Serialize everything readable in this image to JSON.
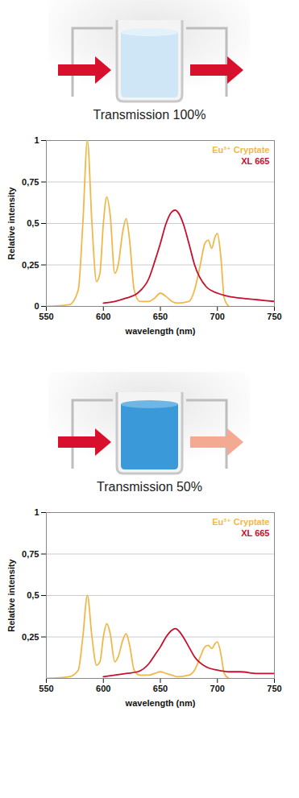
{
  "chart_data": [
    {
      "type": "line",
      "title": "Transmission 100%",
      "x_label": "wavelength (nm)",
      "y_label": "Relative intensity",
      "xlim": [
        550,
        750
      ],
      "xticks": [
        550,
        600,
        650,
        700,
        750
      ],
      "ylim": [
        0,
        1
      ],
      "yticks": [
        0,
        {
          "value": 0.25,
          "label": "0,25"
        },
        {
          "value": 0.5,
          "label": "0,5"
        },
        {
          "value": 0.75,
          "label": "0,75"
        },
        1
      ],
      "grid": true,
      "legend": "top-right",
      "series": [
        {
          "name": "Eu³⁺ Cryptate",
          "color": "#f0b84a",
          "x": [
            550,
            570,
            578,
            582,
            586,
            590,
            594,
            597,
            600,
            603,
            606,
            610,
            613,
            617,
            620,
            623,
            627,
            632,
            640,
            645,
            650,
            655,
            660,
            665,
            675,
            680,
            685,
            689,
            692,
            695,
            698,
            700,
            703,
            706,
            710
          ],
          "values": [
            0,
            0.01,
            0.1,
            0.5,
            1.0,
            0.5,
            0.15,
            0.2,
            0.5,
            0.66,
            0.55,
            0.2,
            0.25,
            0.45,
            0.53,
            0.4,
            0.1,
            0.03,
            0.03,
            0.05,
            0.08,
            0.06,
            0.03,
            0.02,
            0.03,
            0.1,
            0.25,
            0.38,
            0.4,
            0.35,
            0.42,
            0.44,
            0.3,
            0.05,
            0
          ]
        },
        {
          "name": "XL 665",
          "color": "#c8102e",
          "x": [
            600,
            610,
            620,
            630,
            640,
            645,
            650,
            655,
            660,
            663,
            667,
            670,
            675,
            680,
            690,
            700,
            710,
            720,
            735,
            750
          ],
          "values": [
            0.02,
            0.03,
            0.05,
            0.08,
            0.17,
            0.27,
            0.38,
            0.5,
            0.57,
            0.58,
            0.55,
            0.5,
            0.38,
            0.25,
            0.12,
            0.08,
            0.06,
            0.05,
            0.04,
            0.03
          ]
        }
      ]
    },
    {
      "type": "line",
      "title": "Transmission 50%",
      "x_label": "wavelength (nm)",
      "y_label": "Relative intensity",
      "xlim": [
        550,
        750
      ],
      "xticks": [
        550,
        600,
        650,
        700,
        750
      ],
      "ylim": [
        0,
        1
      ],
      "yticks": [
        {
          "value": 0.25,
          "label": "0,25"
        },
        {
          "value": 0.5,
          "label": "0,5"
        },
        {
          "value": 0.75,
          "label": "0,75"
        },
        1
      ],
      "grid": true,
      "legend": "top-right",
      "series": [
        {
          "name": "Eu³⁺ Cryptate",
          "color": "#f0b84a",
          "x": [
            550,
            570,
            578,
            582,
            586,
            590,
            594,
            597,
            600,
            603,
            606,
            610,
            613,
            617,
            620,
            623,
            627,
            632,
            640,
            645,
            650,
            655,
            660,
            665,
            675,
            680,
            685,
            689,
            692,
            695,
            698,
            700,
            703,
            706,
            710
          ],
          "values": [
            0,
            0.01,
            0.05,
            0.25,
            0.5,
            0.25,
            0.08,
            0.1,
            0.25,
            0.33,
            0.27,
            0.1,
            0.13,
            0.23,
            0.27,
            0.2,
            0.05,
            0.02,
            0.02,
            0.03,
            0.04,
            0.03,
            0.02,
            0.01,
            0.02,
            0.05,
            0.13,
            0.19,
            0.2,
            0.18,
            0.21,
            0.22,
            0.15,
            0.03,
            0
          ]
        },
        {
          "name": "XL 665",
          "color": "#c8102e",
          "x": [
            600,
            610,
            620,
            630,
            640,
            645,
            650,
            655,
            660,
            663,
            667,
            670,
            675,
            680,
            690,
            700,
            710,
            720,
            735,
            750
          ],
          "values": [
            0.01,
            0.02,
            0.03,
            0.04,
            0.09,
            0.14,
            0.19,
            0.25,
            0.29,
            0.3,
            0.28,
            0.25,
            0.19,
            0.13,
            0.07,
            0.05,
            0.04,
            0.04,
            0.03,
            0.03
          ]
        }
      ]
    }
  ]
}
